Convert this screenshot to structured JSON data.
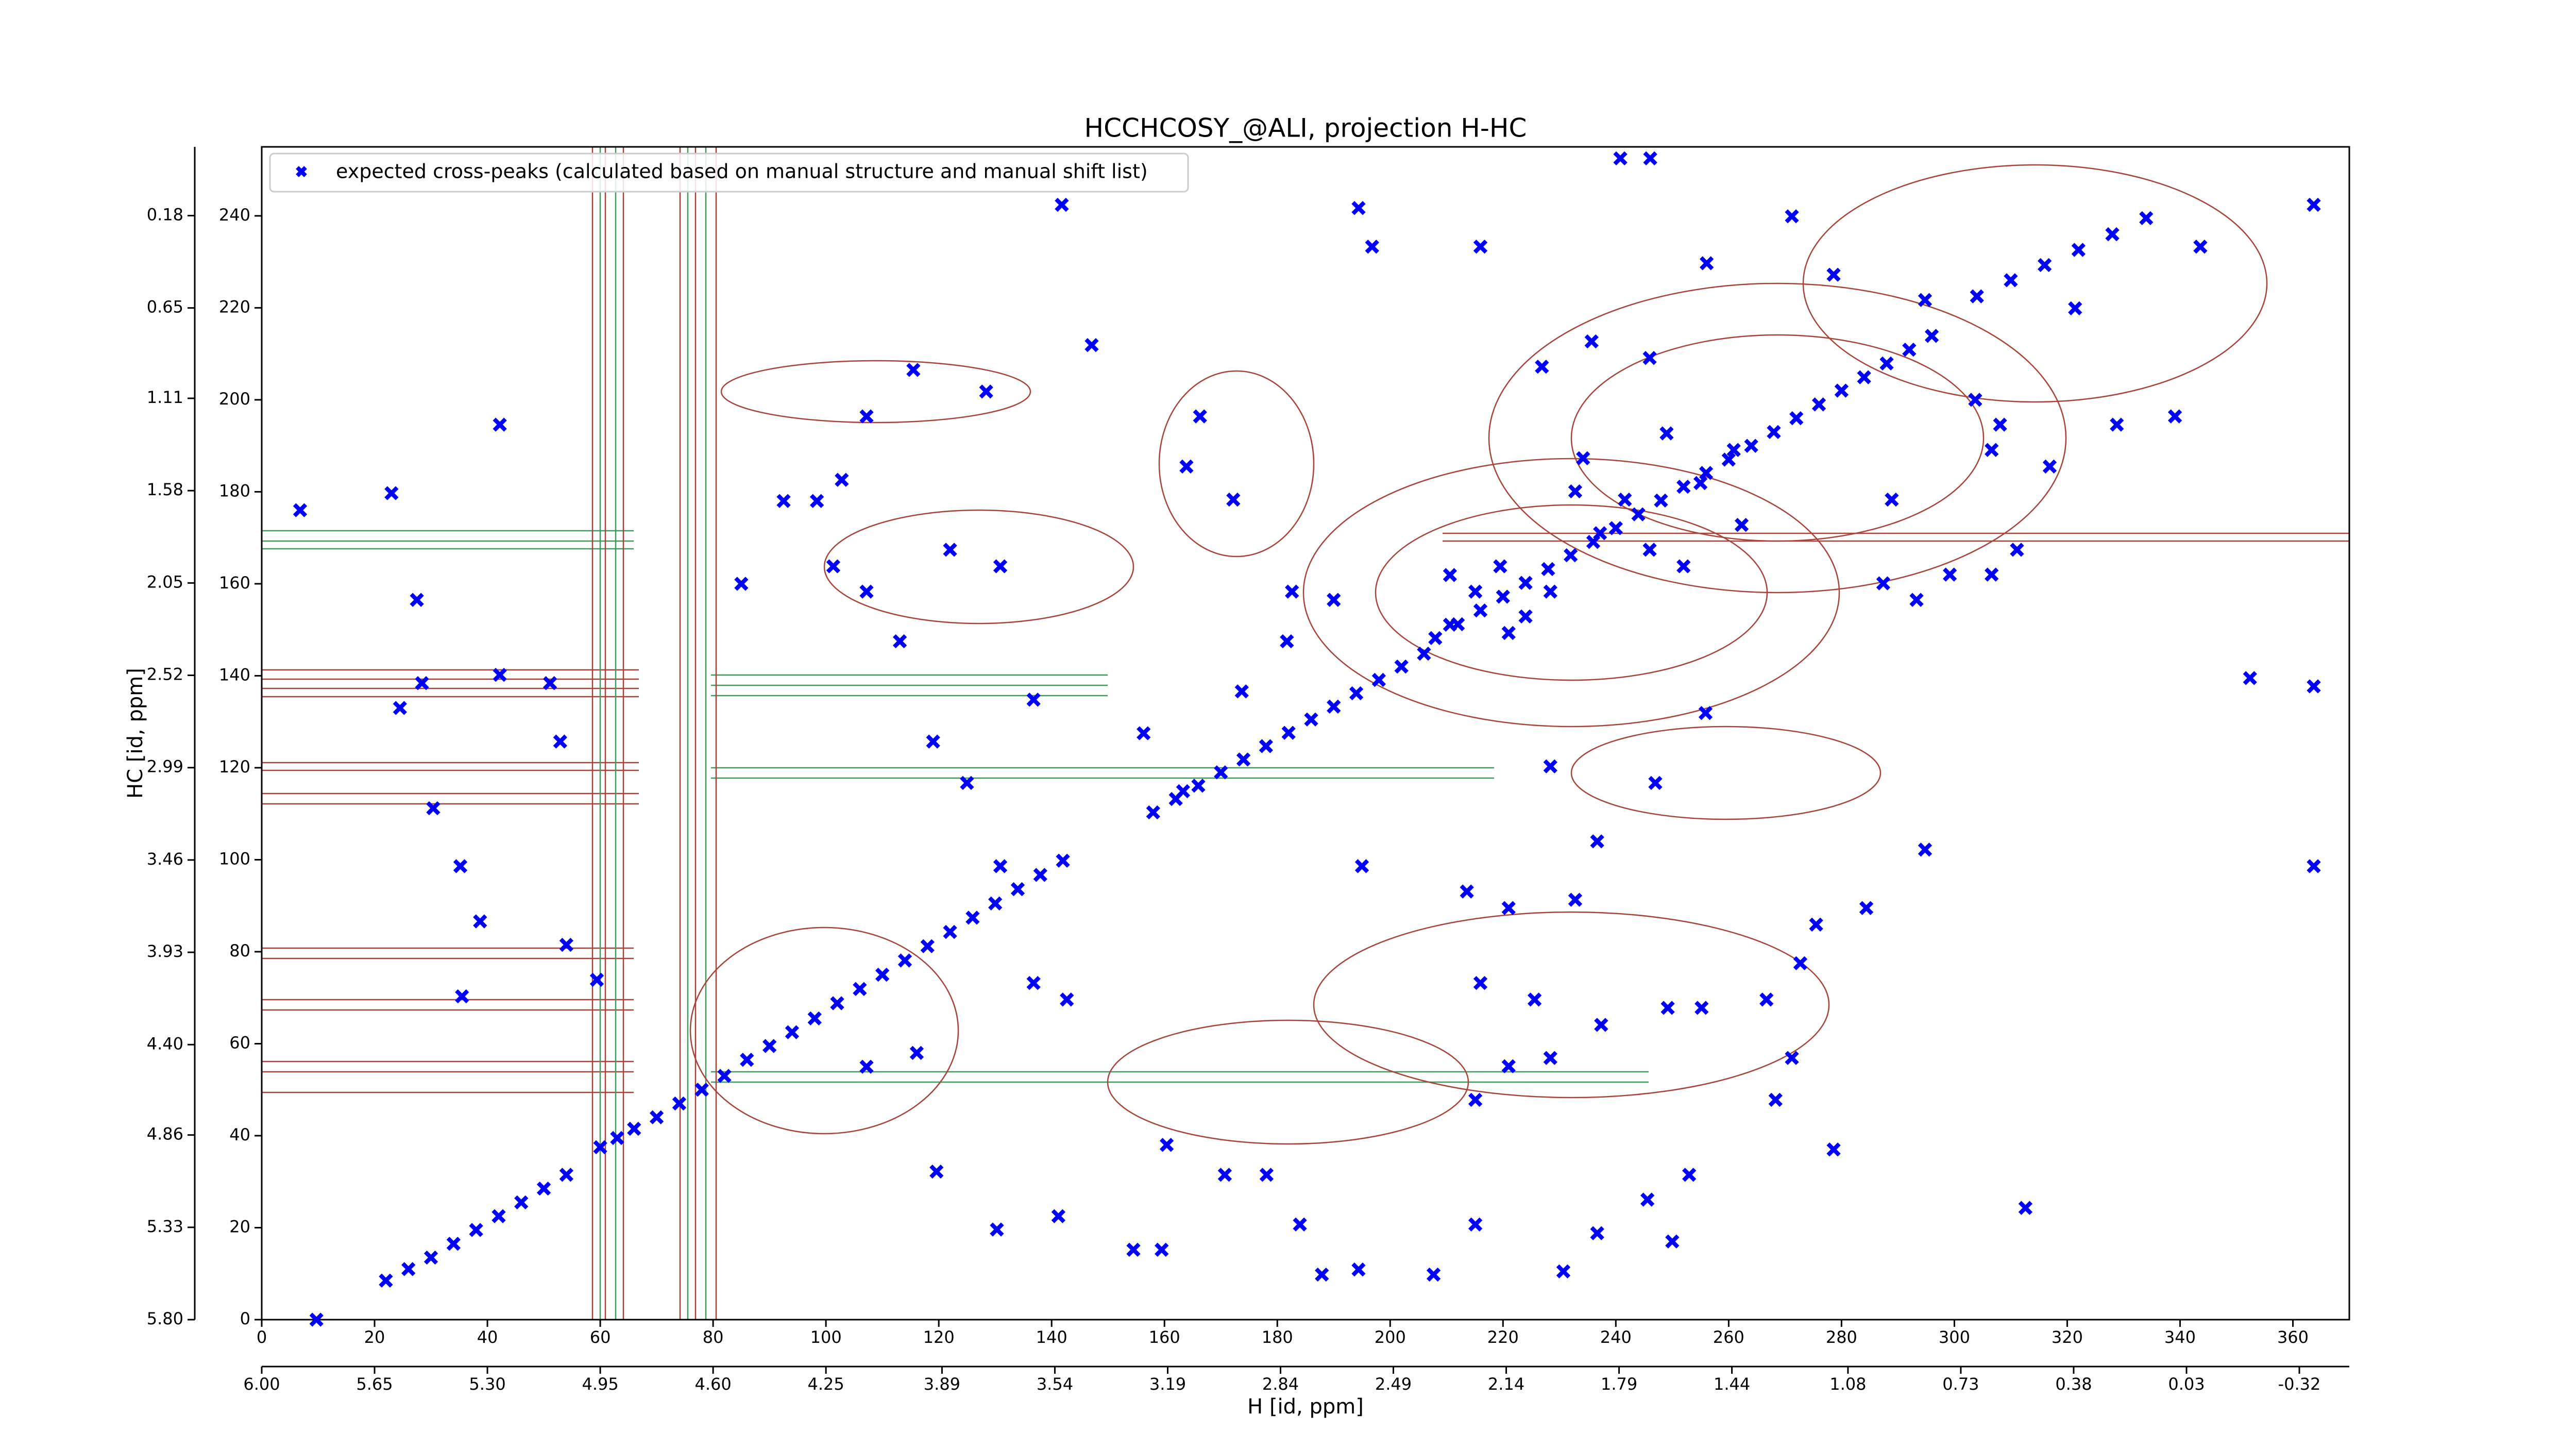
{
  "chart_data": {
    "type": "scatter",
    "title": "HCCHCOSY_@ALI, projection H-HC",
    "xlabel": "H [id, ppm]",
    "ylabel": "HC [id, ppm]",
    "xlim": [
      0,
      370
    ],
    "ylim": [
      0,
      255
    ],
    "xticks": [
      0,
      20,
      40,
      60,
      80,
      100,
      120,
      140,
      160,
      180,
      200,
      220,
      240,
      260,
      280,
      300,
      320,
      340,
      360
    ],
    "yticks": [
      0,
      20,
      40,
      60,
      80,
      100,
      120,
      140,
      160,
      180,
      200,
      220,
      240
    ],
    "x2lim": [
      6.0,
      -0.475
    ],
    "x2ticks": [
      {
        "value": 6.0,
        "label": "6.00"
      },
      {
        "value": 5.65,
        "label": "5.65"
      },
      {
        "value": 5.3,
        "label": "5.30"
      },
      {
        "value": 4.95,
        "label": "4.95"
      },
      {
        "value": 4.6,
        "label": "4.60"
      },
      {
        "value": 4.25,
        "label": "4.25"
      },
      {
        "value": 3.89,
        "label": "3.89"
      },
      {
        "value": 3.54,
        "label": "3.54"
      },
      {
        "value": 3.19,
        "label": "3.19"
      },
      {
        "value": 2.84,
        "label": "2.84"
      },
      {
        "value": 2.49,
        "label": "2.49"
      },
      {
        "value": 2.14,
        "label": "2.14"
      },
      {
        "value": 1.79,
        "label": "1.79"
      },
      {
        "value": 1.44,
        "label": "1.44"
      },
      {
        "value": 1.08,
        "label": "1.08"
      },
      {
        "value": 0.73,
        "label": "0.73"
      },
      {
        "value": 0.38,
        "label": "0.38"
      },
      {
        "value": 0.03,
        "label": "0.03"
      },
      {
        "value": -0.32,
        "label": "-0.32"
      }
    ],
    "y2lim": [
      5.8,
      -0.17
    ],
    "y2ticks": [
      {
        "value": 5.8,
        "label": "5.80"
      },
      {
        "value": 5.33,
        "label": "5.33"
      },
      {
        "value": 4.86,
        "label": "4.86"
      },
      {
        "value": 4.4,
        "label": "4.40"
      },
      {
        "value": 3.93,
        "label": "3.93"
      },
      {
        "value": 3.46,
        "label": "3.46"
      },
      {
        "value": 2.99,
        "label": "2.99"
      },
      {
        "value": 2.52,
        "label": "2.52"
      },
      {
        "value": 2.05,
        "label": "2.05"
      },
      {
        "value": 1.58,
        "label": "1.58"
      },
      {
        "value": 1.11,
        "label": "1.11"
      },
      {
        "value": 0.65,
        "label": "0.65"
      },
      {
        "value": 0.18,
        "label": "0.18"
      }
    ],
    "legend": "upper left",
    "series": [
      {
        "name": "expected cross-peaks (calculated based on manual structure and manual shift list)",
        "color": "#0000ff",
        "x": [
          22,
          26,
          30,
          34,
          38,
          42,
          46,
          50,
          54,
          60,
          63,
          66,
          70,
          74,
          78,
          82,
          86,
          90,
          94,
          98,
          102,
          106,
          110,
          114,
          118,
          122,
          126,
          130,
          134,
          138,
          142,
          158,
          162,
          166,
          170,
          174,
          178,
          182,
          186,
          190,
          194,
          198,
          202,
          206,
          208,
          212,
          216,
          220,
          224,
          228,
          232,
          236,
          240,
          244,
          248,
          252,
          256,
          260,
          264,
          268,
          272,
          276,
          280,
          284,
          288,
          292,
          296,
          304,
          310,
          316,
          322,
          328,
          334,
          6.8,
          9.7,
          23,
          42.2,
          27.5,
          24.5,
          28.4,
          30.4,
          35.2,
          38.7,
          35.5,
          42.2,
          51.1,
          52.9,
          54,
          59.4,
          85,
          92.5,
          98.4,
          102.8,
          101.3,
          107.2,
          113.1,
          119,
          125,
          130.9,
          136.8,
          141.8,
          147.1,
          142.7,
          116.1,
          107.2,
          119.6,
          130.3,
          141.2,
          154.5,
          159.5,
          160.4,
          170.7,
          178.1,
          184,
          187.9,
          194.4,
          194.4,
          196.8,
          216,
          240.8,
          246.1,
          271.2,
          256.1,
          278.6,
          294.8,
          321.4,
          343.6,
          363.7,
          352.4,
          363.7,
          363.7,
          339.1,
          328.8,
          316.9,
          306.6,
          288.9,
          293.3,
          287.4,
          294.8,
          284.4,
          275.5,
          272.7,
          266.7,
          271.2,
          268.3,
          278.6,
          253,
          245.6,
          236.7,
          250,
          230.7,
          215.1,
          207.7,
          312.6,
          236.7,
          247,
          255.9,
          228.4,
          213.6,
          221,
          232.8,
          216,
          225.6,
          237.4,
          249.2,
          255.2,
          228.4,
          221,
          215.1,
          195,
          173.7,
          181.7,
          190,
          182.6,
          172.2,
          166.3,
          163.9,
          156.3,
          163.3,
          136.8,
          130.9,
          122,
          128.4,
          115.5,
          107.2,
          210.6,
          215.1,
          219.5,
          224,
          228.4,
          210.6,
          221,
          234.2,
          241.6,
          249,
          255,
          260.9,
          262.3,
          237.2,
          246,
          252,
          232.8,
          235.7,
          246,
          226.9,
          303.7,
          308.1,
          311.1,
          306.6,
          299.2
        ],
        "values": [
          8.5,
          11,
          13.5,
          16.5,
          19.5,
          22.5,
          25.5,
          28.5,
          31.5,
          37.5,
          39.5,
          41.5,
          44,
          47,
          50,
          53,
          56.5,
          59.5,
          62.5,
          65.5,
          68.8,
          71.9,
          75,
          78.1,
          81.2,
          84.3,
          87.4,
          90.5,
          93.6,
          96.7,
          99.8,
          110.3,
          113.2,
          116.1,
          119,
          121.8,
          124.7,
          127.6,
          130.5,
          133.3,
          136.2,
          139.1,
          142,
          144.8,
          148.2,
          151.2,
          154.2,
          157.2,
          160.2,
          163.2,
          166.2,
          169.1,
          172.1,
          175.1,
          178.1,
          181.1,
          184.1,
          187,
          190,
          193,
          196,
          199,
          202,
          204.9,
          207.9,
          210.9,
          213.9,
          222.5,
          226,
          229.3,
          232.6,
          236,
          239.5,
          176,
          0,
          179.7,
          194.6,
          156.5,
          133,
          138.4,
          111.2,
          98.6,
          86.6,
          70.3,
          140.2,
          138.4,
          125.7,
          81.5,
          73.9,
          160,
          178,
          178,
          182.6,
          163.8,
          158.3,
          147.5,
          125.7,
          116.7,
          98.6,
          73.2,
          242.4,
          211.9,
          69.6,
          58,
          55,
          32.2,
          19.6,
          22.5,
          15.2,
          15.2,
          38,
          31.5,
          31.5,
          20.7,
          9.8,
          10.9,
          241.7,
          233.3,
          233.3,
          252.5,
          252.5,
          239.9,
          229.7,
          227.2,
          221.7,
          219.9,
          233.3,
          242.4,
          139.5,
          137.7,
          98.6,
          196.4,
          194.6,
          185.5,
          189.1,
          178.3,
          156.5,
          160.1,
          102.2,
          89.5,
          85.9,
          77.5,
          69.6,
          56.9,
          47.8,
          37,
          31.5,
          26.1,
          18.8,
          17,
          10.5,
          20.7,
          9.8,
          24.3,
          104,
          116.7,
          131.9,
          120.3,
          93.1,
          89.5,
          91.3,
          73.2,
          69.6,
          64.1,
          67.8,
          67.8,
          56.9,
          55.1,
          47.8,
          98.6,
          136.6,
          147.5,
          156.5,
          158.3,
          178.3,
          196.4,
          185.5,
          127.5,
          114.9,
          134.8,
          163.8,
          167.4,
          201.8,
          206.5,
          196.4,
          161.9,
          158.3,
          163.8,
          152.9,
          158.3,
          151.1,
          149.3,
          187.3,
          178.3,
          192.7,
          181.9,
          189.1,
          172.8,
          171,
          167.4,
          163.8,
          180.1,
          212.7,
          209.1,
          207.2,
          200,
          194.6,
          167.4,
          162,
          162
        ]
      }
    ]
  }
}
